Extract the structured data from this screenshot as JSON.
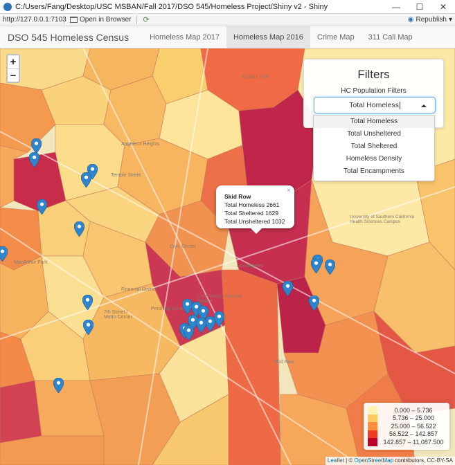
{
  "window": {
    "title": "C:/Users/Fang/Desktop/USC MSBAN/Fall 2017/DSO 545/Homeless Project/Shiny v2 - Shiny"
  },
  "toolbar": {
    "url": "http://127.0.0.1:7103",
    "open_in_browser": "Open in Browser",
    "republish": "Republish"
  },
  "nav": {
    "brand": "DSO 545 Homeless Census",
    "tabs": [
      "Homeless Map 2017",
      "Homeless Map 2016",
      "Crime Map",
      "311 Call Map"
    ],
    "active_tab": "Homeless Map 2016"
  },
  "map": {
    "zoom_in": "+",
    "zoom_out": "−",
    "labels": [
      "Angeleno Heights",
      "Elysian Park",
      "University of Southern California Health Sciences Campus",
      "Little Tokyo - Historic District",
      "Pershing Square",
      "Civic Center",
      "Los Angeles",
      "Financial District",
      "7th Street / Metro Center",
      "MacArthur Park",
      "Temple Street",
      "Skid Row"
    ],
    "popup": {
      "title": "Skid Row",
      "lines": [
        "Total Homeless 2661",
        "Total Sheltered 1629",
        "Total Unsheltered 1032"
      ],
      "close": "×"
    },
    "attribution": {
      "leaflet": "Leaflet",
      "sep": " | © ",
      "osm": "OpenStreetMap",
      "rest": " contributors, CC-BY-SA"
    }
  },
  "filters": {
    "title": "Filters",
    "label": "HC Population Filters",
    "selected": "Total Homeless",
    "options": [
      "Total Homeless",
      "Total Unsheltered",
      "Total Sheltered",
      "Homeless Density",
      "Total Encampments"
    ]
  },
  "legend": {
    "items": [
      {
        "label": "0.000 – 5.736",
        "color": "#fff2b2"
      },
      {
        "label": "5.736 – 25.000",
        "color": "#fecc5c"
      },
      {
        "label": "25.000 – 56.522",
        "color": "#fd8d3c"
      },
      {
        "label": "56.522 – 142.857",
        "color": "#f03b20"
      },
      {
        "label": "142.857 – 11,087.500",
        "color": "#bd0026"
      }
    ]
  },
  "colors": {
    "pin": "#2f85cc",
    "accent_focus": "#66afe9"
  }
}
